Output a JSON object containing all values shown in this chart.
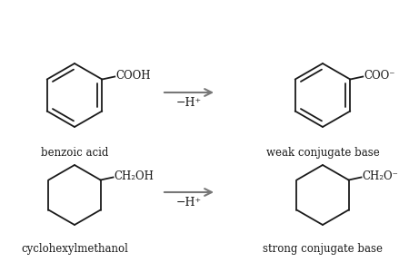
{
  "bg_color": "#ffffff",
  "line_color": "#1a1a1a",
  "arrow_color": "#777777",
  "label_top_left": "benzoic acid",
  "label_top_right": "weak conjugate base",
  "label_bot_left": "cyclohexylmethanol",
  "label_bot_right": "strong conjugate base",
  "arrow_label_top": "−H⁺",
  "arrow_label_bot": "−H⁺",
  "group_top_left": "COOH",
  "group_top_right": "COO⁻",
  "group_bot_left": "CH₂OH",
  "group_bot_right": "CH₂O⁻"
}
